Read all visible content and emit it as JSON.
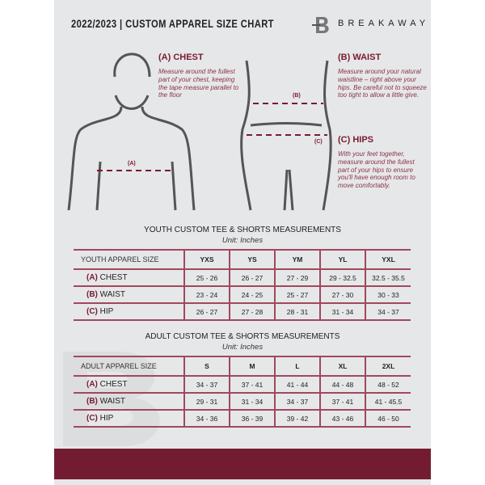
{
  "header": {
    "title": "2022/2023  |  CUSTOM APPAREL SIZE CHART",
    "brand": "BREAKAWAY",
    "logo": "B"
  },
  "guide": {
    "chest": {
      "heading": "(A) CHEST",
      "text": "Measure around the fullest part of your chest, keeping the tape measure parallel to the floor",
      "marker": "(A)"
    },
    "waist": {
      "heading": "(B) WAIST",
      "text": "Measure around your natural waistline – right above your hips. Be careful not to squeeze too tight to allow a little give.",
      "marker": "(B)"
    },
    "hips": {
      "heading": "(C) HIPS",
      "text": "With your feet together, measure around the fullest part of your hips to ensure you'll have enough room to move comfortably.",
      "marker": "(C)"
    }
  },
  "youth": {
    "title": "YOUTH CUSTOM TEE & SHORTS MEASUREMENTS",
    "unit": "Unit: Inches",
    "header": "YOUTH APPAREL SIZE",
    "sizes": [
      "YXS",
      "YS",
      "YM",
      "YL",
      "YXL"
    ],
    "rows": [
      {
        "letter": "(A)",
        "label": "CHEST",
        "values": [
          "25 - 26",
          "26 - 27",
          "27 - 29",
          "29 - 32.5",
          "32.5 - 35.5"
        ]
      },
      {
        "letter": "(B)",
        "label": "WAIST",
        "values": [
          "23 - 24",
          "24 - 25",
          "25 - 27",
          "27 - 30",
          "30 - 33"
        ]
      },
      {
        "letter": "(C)",
        "label": "HIP",
        "values": [
          "26 - 27",
          "27 - 28",
          "28 - 31",
          "31 - 34",
          "34 - 37"
        ]
      }
    ]
  },
  "adult": {
    "title": "ADULT CUSTOM TEE & SHORTS MEASUREMENTS",
    "unit": "Unit: Inches",
    "header": "ADULT APPAREL SIZE",
    "sizes": [
      "S",
      "M",
      "L",
      "XL",
      "2XL"
    ],
    "rows": [
      {
        "letter": "(A)",
        "label": "CHEST",
        "values": [
          "34 - 37",
          "37 - 41",
          "41 - 44",
          "44 - 48",
          "48 - 52"
        ]
      },
      {
        "letter": "(B)",
        "label": "WAIST",
        "values": [
          "29 - 31",
          "31 - 34",
          "34 - 37",
          "37 - 41",
          "41 - 45.5"
        ]
      },
      {
        "letter": "(C)",
        "label": "HIP",
        "values": [
          "34 - 36",
          "36 - 39",
          "39 - 42",
          "43 - 46",
          "46 - 50"
        ]
      }
    ]
  },
  "colors": {
    "accent": "#731c31",
    "panel": "#e6e7e9"
  }
}
